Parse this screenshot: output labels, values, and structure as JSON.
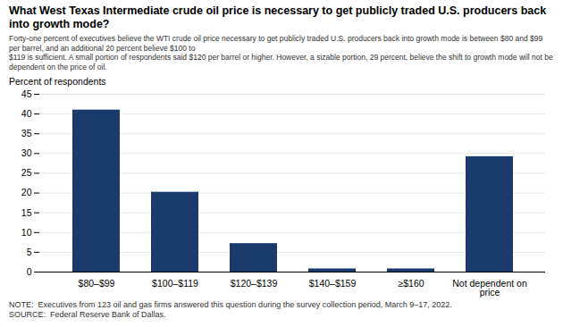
{
  "chart_data": {
    "type": "bar",
    "title": "What West Texas Intermediate crude oil price is necessary to get publicly traded U.S. producers back into growth mode?",
    "subtitle": [
      "Forty-one percent of executives believe the WTI crude oil price necessary to get publicly traded U.S. producers back into growth mode is between $80 and $99 per barrel, and an additional 20 percent believe $100 to",
      "$119 is sufficient. A small portion of respondents said $120 per barrel or higher. However, a sizable portion, 29 percent, believe the shift to growth mode will not be dependent on the price of oil."
    ],
    "ylabel": "Percent of respondents",
    "categories": [
      "$80–$99",
      "$100–$119",
      "$120–$139",
      "$140–$159",
      "≥$160",
      "Not dependent on\nprice"
    ],
    "values": [
      41.0,
      20.2,
      7.2,
      0.8,
      0.8,
      29.2
    ],
    "color": "#1a3a6b",
    "ylim": [
      0,
      45
    ],
    "yticks": [
      0,
      5,
      10,
      15,
      20,
      25,
      30,
      35,
      40,
      45
    ],
    "grid": true,
    "notes": [
      "NOTE:  Executives from 123 oil and gas firms answered this question during the survey collection period, March 9–17, 2022.",
      "SOURCE:  Federal Reserve Bank of Dallas."
    ]
  }
}
